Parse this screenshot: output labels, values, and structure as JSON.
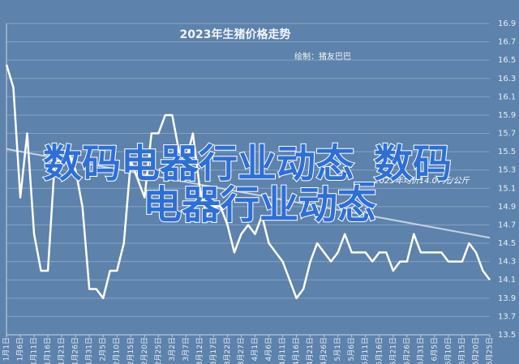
{
  "chart_data": {
    "type": "line",
    "title": "2023年生猪价格走势",
    "subtitle": "绘制：猪友巴巴",
    "annotation": "2023年均价14.07元/公斤",
    "overlay": [
      "数码电器行业动态_数码",
      "电器行业动态"
    ],
    "categories": [
      "1月1日",
      null,
      "1月6日",
      null,
      "1月11日",
      null,
      "1月16日",
      null,
      "1月21日",
      null,
      "1月26日",
      null,
      "1月31日",
      null,
      "2月5日",
      null,
      "2月10日",
      null,
      "2月15日",
      null,
      "2月20日",
      null,
      "2月25日",
      null,
      "3月2日",
      null,
      "3月7日",
      null,
      "3月12日",
      null,
      "3月17日",
      null,
      "3月22日",
      null,
      "3月27日",
      null,
      "4月1日",
      null,
      "4月6日",
      null,
      "4月11日",
      null,
      "4月16日",
      null,
      "4月21日",
      null,
      "4月26日",
      null,
      "5月1日",
      null,
      "5月6日",
      null,
      "5月11日",
      null,
      "5月16日",
      null,
      "5月21日",
      null,
      "5月26日",
      null,
      "5月31日",
      null,
      "6月5日",
      null,
      "6月10日",
      null,
      "6月15日",
      null,
      "6月20日",
      null,
      "6月25日"
    ],
    "series": [
      {
        "color": "#ffffff",
        "values": [
          16.45,
          16.2,
          15.0,
          15.7,
          14.6,
          14.2,
          14.2,
          15.4,
          15.4,
          15.5,
          15.3,
          14.9,
          14.0,
          14.0,
          13.9,
          14.2,
          14.2,
          14.5,
          15.4,
          15.2,
          15.0,
          15.7,
          15.7,
          15.9,
          15.9,
          15.5,
          15.4,
          15.7,
          15.1,
          14.8,
          14.9,
          14.9,
          14.7,
          14.4,
          14.6,
          14.7,
          14.6,
          14.8,
          14.5,
          14.4,
          14.3,
          14.1,
          13.9,
          14.0,
          14.3,
          14.5,
          14.4,
          14.3,
          14.4,
          14.6,
          14.4,
          14.4,
          14.4,
          14.3,
          14.4,
          14.4,
          14.2,
          14.3,
          14.3,
          14.6,
          14.4,
          14.4,
          14.4,
          14.4,
          14.3,
          14.3,
          14.3,
          14.5,
          14.4,
          14.2,
          14.1
        ]
      }
    ],
    "trendline": [
      15.53,
      14.56
    ],
    "ylim": [
      13.5,
      16.9
    ],
    "yticks": [
      13.5,
      13.7,
      13.9,
      14.1,
      14.3,
      14.5,
      14.7,
      14.9,
      15.1,
      15.3,
      15.5,
      15.7,
      15.9,
      16.1,
      16.3,
      16.5,
      16.7,
      16.9
    ],
    "grid": true
  }
}
